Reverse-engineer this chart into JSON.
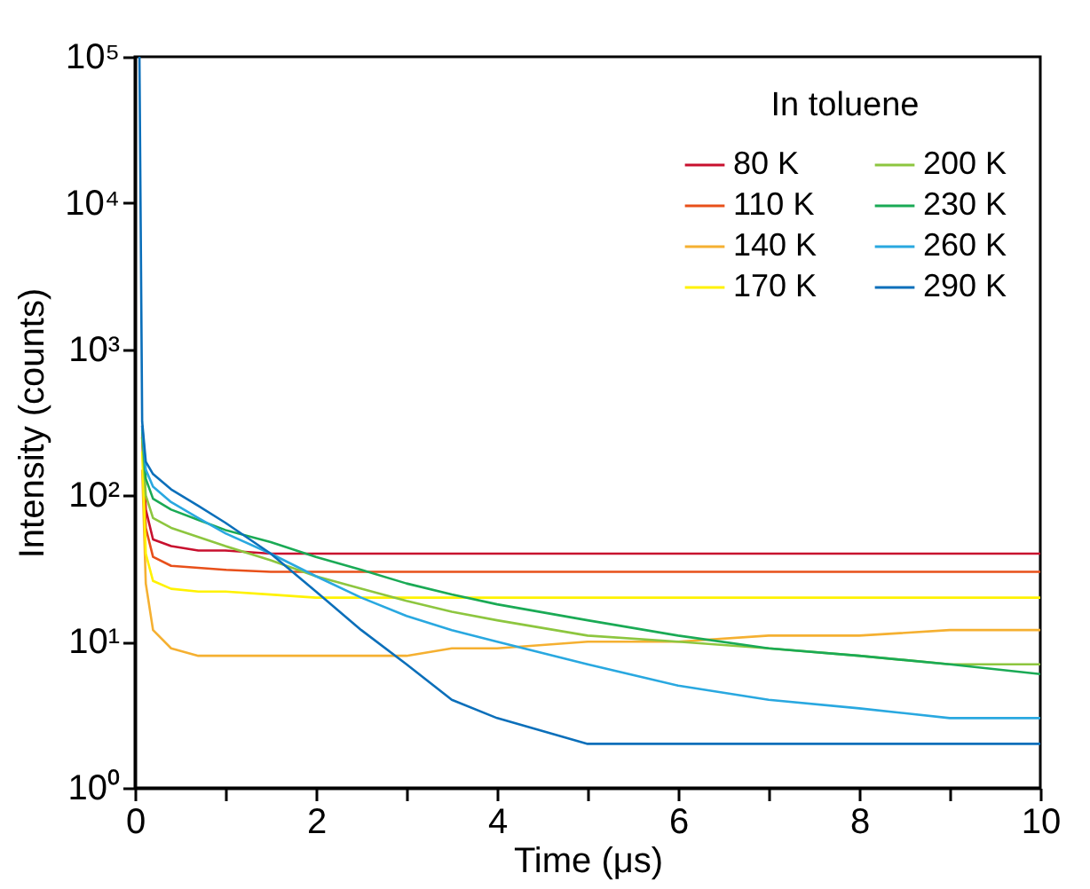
{
  "chart_data": {
    "type": "line",
    "xlabel": "Time (μs)",
    "ylabel": "Intensity (counts)",
    "legend_title": "In toluene",
    "log": "y",
    "legend": "top right",
    "grid": false,
    "line_style": "solid",
    "marker": "none",
    "x": [
      0.05,
      0.08,
      0.12,
      0.2,
      0.4,
      0.7,
      1,
      1.5,
      2,
      2.5,
      3,
      3.5,
      4,
      5,
      6,
      7,
      8,
      9,
      10
    ],
    "xlim": [
      0,
      10
    ],
    "xticks": [
      0,
      {
        "value": 1,
        "label": null
      },
      2,
      {
        "value": 3,
        "label": null
      },
      4,
      {
        "value": 5,
        "label": null
      },
      6,
      {
        "value": 7,
        "label": null
      },
      8,
      {
        "value": 9,
        "label": null
      },
      10
    ],
    "ylim": [
      1,
      100000
    ],
    "yticks": [
      {
        "value": 1,
        "label": "10⁰"
      },
      {
        "value": 10,
        "label": "10¹"
      },
      {
        "value": 100,
        "label": "10²"
      },
      {
        "value": 1000,
        "label": "10³"
      },
      {
        "value": 10000,
        "label": "10⁴"
      },
      {
        "value": 100000,
        "label": "10⁵"
      }
    ],
    "series": [
      {
        "name": "80 K",
        "color": "#c8102e",
        "values": [
          null,
          300,
          80,
          50,
          45,
          42,
          42,
          40,
          40,
          40,
          40,
          40,
          40,
          40,
          40,
          40,
          40,
          40,
          40
        ]
      },
      {
        "name": "110 K",
        "color": "#e8501a",
        "values": [
          null,
          250,
          60,
          38,
          33,
          32,
          31,
          30,
          30,
          30,
          30,
          30,
          30,
          30,
          30,
          30,
          30,
          30,
          30
        ]
      },
      {
        "name": "140 K",
        "color": "#f5b031",
        "values": [
          null,
          150,
          25,
          12,
          9,
          8,
          8,
          8,
          8,
          8,
          8,
          9,
          9,
          10,
          10,
          11,
          11,
          12,
          12
        ]
      },
      {
        "name": "170 K",
        "color": "#fff200",
        "values": [
          null,
          200,
          40,
          26,
          23,
          22,
          22,
          21,
          20,
          20,
          20,
          20,
          20,
          20,
          20,
          20,
          20,
          20,
          20
        ]
      },
      {
        "name": "200 K",
        "color": "#8dc63f",
        "values": [
          null,
          250,
          100,
          70,
          60,
          52,
          45,
          36,
          28,
          23,
          19,
          16,
          14,
          11,
          10,
          9,
          8,
          7,
          7
        ]
      },
      {
        "name": "230 K",
        "color": "#1aaa55",
        "values": [
          null,
          280,
          130,
          95,
          80,
          68,
          58,
          48,
          38,
          31,
          25,
          21,
          18,
          14,
          11,
          9,
          8,
          7,
          6
        ]
      },
      {
        "name": "260 K",
        "color": "#29a8e0",
        "values": [
          null,
          300,
          150,
          115,
          90,
          70,
          55,
          40,
          28,
          20,
          15,
          12,
          10,
          7,
          5,
          4,
          3.5,
          3,
          3
        ]
      },
      {
        "name": "290 K",
        "color": "#0b6fba",
        "values": [
          100000,
          320,
          170,
          140,
          110,
          85,
          65,
          40,
          22,
          12,
          7,
          4,
          3,
          2,
          2,
          2,
          2,
          2,
          2
        ]
      }
    ]
  }
}
